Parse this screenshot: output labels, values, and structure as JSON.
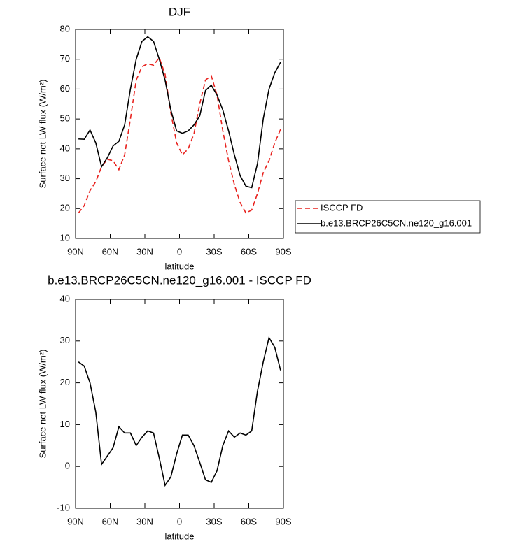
{
  "chart_data": [
    {
      "type": "line",
      "title": "DJF",
      "xlabel": "latitude",
      "ylabel": "Surface net LW flux (W/m²)",
      "x": [
        87.5,
        82.5,
        77.5,
        72.5,
        67.5,
        62.5,
        57.5,
        52.5,
        47.5,
        42.5,
        37.5,
        32.5,
        27.5,
        22.5,
        17.5,
        12.5,
        7.5,
        2.5,
        -2.5,
        -7.5,
        -12.5,
        -17.5,
        -22.5,
        -27.5,
        -32.5,
        -37.5,
        -42.5,
        -47.5,
        -52.5,
        -57.5,
        -62.5,
        -67.5,
        -72.5,
        -77.5,
        -82.5,
        -87.5
      ],
      "xlim": [
        90,
        -90
      ],
      "xticks": [
        {
          "value": 90,
          "label": "90N"
        },
        {
          "value": 60,
          "label": "60N"
        },
        {
          "value": 30,
          "label": "30N"
        },
        0,
        {
          "value": -30,
          "label": "30S"
        },
        {
          "value": -60,
          "label": "60S"
        },
        {
          "value": -90,
          "label": "90S"
        }
      ],
      "ylim": [
        10,
        80
      ],
      "yticks": [
        10,
        20,
        30,
        40,
        50,
        60,
        70,
        80
      ],
      "legend": "right",
      "series": [
        {
          "name": "ISCCP FD",
          "color": "#e8221e",
          "dash": "dashed",
          "values": [
            18.5,
            21,
            26,
            29,
            34,
            36.5,
            36,
            33,
            38,
            50,
            63,
            67.5,
            68.5,
            68,
            70.5,
            65,
            52,
            42,
            38,
            40,
            45,
            55,
            63,
            64.5,
            58,
            46,
            36,
            28,
            22,
            18.5,
            19.5,
            25,
            32,
            36,
            42,
            46.5
          ]
        },
        {
          "name": "b.e13.BRCP26C5CN.ne120_g16.001",
          "color": "#000000",
          "dash": "solid",
          "values": [
            43.3,
            43.2,
            46.3,
            42,
            34,
            37,
            41,
            42.5,
            48,
            60,
            70,
            76,
            77.5,
            76,
            70,
            63,
            53,
            46,
            45.2,
            46,
            48,
            51,
            59.5,
            61.3,
            58,
            53,
            46,
            38,
            31,
            27.5,
            27,
            35,
            50,
            60,
            65.5,
            69
          ]
        }
      ]
    },
    {
      "type": "line",
      "title": "b.e13.BRCP26C5CN.ne120_g16.001 - ISCCP FD",
      "xlabel": "latitude",
      "ylabel": "Surface net LW flux (W/m²)",
      "x": [
        87.5,
        82.5,
        77.5,
        72.5,
        67.5,
        62.5,
        57.5,
        52.5,
        47.5,
        42.5,
        37.5,
        32.5,
        27.5,
        22.5,
        17.5,
        12.5,
        7.5,
        2.5,
        -2.5,
        -7.5,
        -12.5,
        -17.5,
        -22.5,
        -27.5,
        -32.5,
        -37.5,
        -42.5,
        -47.5,
        -52.5,
        -57.5,
        -62.5,
        -67.5,
        -72.5,
        -77.5,
        -82.5,
        -87.5
      ],
      "xlim": [
        90,
        -90
      ],
      "xticks": [
        {
          "value": 90,
          "label": "90N"
        },
        {
          "value": 60,
          "label": "60N"
        },
        {
          "value": 30,
          "label": "30N"
        },
        0,
        {
          "value": -30,
          "label": "30S"
        },
        {
          "value": -60,
          "label": "60S"
        },
        {
          "value": -90,
          "label": "90S"
        }
      ],
      "ylim": [
        -10,
        40
      ],
      "yticks": [
        -10,
        0,
        10,
        20,
        30,
        40
      ],
      "series": [
        {
          "color": "#000000",
          "dash": "solid",
          "values": [
            25,
            24,
            20,
            13,
            0.5,
            2.5,
            4.5,
            9.5,
            8,
            8,
            5,
            7,
            8.5,
            8,
            2,
            -4.5,
            -2.5,
            3,
            7.5,
            7.5,
            5,
            1,
            -3.2,
            -3.8,
            -1,
            5,
            8.5,
            7,
            8,
            7.5,
            8.5,
            18,
            25,
            30.8,
            28.5,
            23
          ]
        }
      ]
    }
  ]
}
